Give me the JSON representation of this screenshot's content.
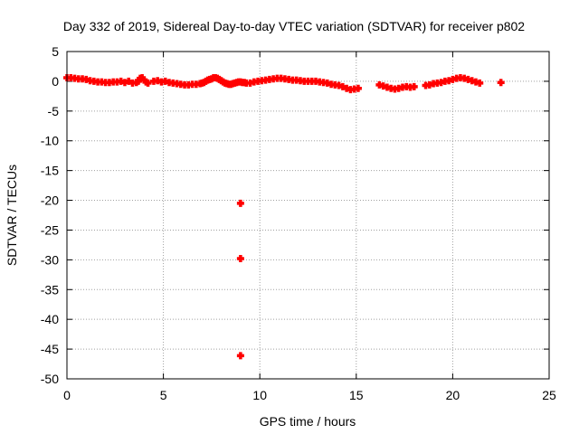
{
  "chart_data": {
    "type": "scatter",
    "title": "Day 332 of 2019, Sidereal Day-to-day VTEC variation (SDTVAR) for receiver p802",
    "xlabel": "GPS time / hours",
    "ylabel": "SDTVAR / TECUs",
    "xlim": [
      0,
      25
    ],
    "ylim": [
      -50,
      5
    ],
    "xticks": [
      0,
      5,
      10,
      15,
      20,
      25
    ],
    "yticks": [
      5,
      0,
      -5,
      -10,
      -15,
      -20,
      -25,
      -30,
      -35,
      -40,
      -45,
      -50
    ],
    "grid": true,
    "legend": "none",
    "marker_color": "#ff0000",
    "series": [
      {
        "marker": "plus",
        "x": [
          0.0,
          0.2,
          0.4,
          0.6,
          0.8,
          1.0,
          1.2,
          1.4,
          1.6,
          1.8,
          2.0,
          2.2,
          2.4,
          2.6,
          2.8,
          3.0,
          3.2,
          3.4,
          3.6,
          3.7,
          3.8,
          3.9,
          4.0,
          4.1,
          4.2,
          4.5,
          4.7,
          4.9,
          5.1,
          5.3,
          5.5,
          5.7,
          5.9,
          6.1,
          6.3,
          6.5,
          6.7,
          6.9,
          7.0,
          7.1,
          7.2,
          7.3,
          7.4,
          7.5,
          7.6,
          7.7,
          7.8,
          7.9,
          8.0,
          8.1,
          8.2,
          8.3,
          8.4,
          8.5,
          8.6,
          8.7,
          8.8,
          8.9,
          9.0,
          9.1,
          9.2,
          9.3,
          9.5,
          9.7,
          9.9,
          10.1,
          10.3,
          10.5,
          10.7,
          10.9,
          11.1,
          11.3,
          11.5,
          11.7,
          11.9,
          12.1,
          12.3,
          12.5,
          12.7,
          12.9,
          13.1,
          13.3,
          13.5,
          13.7,
          13.9,
          14.1,
          14.3,
          14.5,
          14.7,
          14.9,
          15.1,
          16.2,
          16.4,
          16.6,
          16.8,
          17.0,
          17.2,
          17.4,
          17.6,
          17.8,
          18.0,
          18.6,
          18.8,
          19.0,
          19.2,
          19.4,
          19.6,
          19.8,
          20.0,
          20.2,
          20.4,
          20.6,
          20.8,
          21.0,
          21.2,
          21.4,
          22.5,
          9.0,
          9.0,
          9.0
        ],
        "y": [
          0.6,
          0.6,
          0.5,
          0.4,
          0.4,
          0.3,
          0.1,
          0.0,
          -0.1,
          -0.1,
          -0.2,
          -0.2,
          -0.1,
          -0.1,
          0.0,
          -0.2,
          0.0,
          -0.3,
          -0.2,
          0.0,
          0.5,
          0.6,
          0.2,
          -0.1,
          -0.3,
          0.0,
          0.1,
          -0.1,
          0.0,
          -0.2,
          -0.3,
          -0.4,
          -0.5,
          -0.6,
          -0.6,
          -0.5,
          -0.5,
          -0.4,
          -0.3,
          -0.2,
          0.0,
          0.2,
          0.3,
          0.4,
          0.6,
          0.6,
          0.5,
          0.3,
          0.1,
          -0.1,
          -0.3,
          -0.4,
          -0.5,
          -0.5,
          -0.4,
          -0.3,
          -0.2,
          -0.1,
          -0.1,
          -0.2,
          -0.2,
          -0.3,
          -0.3,
          -0.1,
          0.0,
          0.1,
          0.2,
          0.3,
          0.4,
          0.5,
          0.5,
          0.4,
          0.3,
          0.2,
          0.2,
          0.1,
          0.0,
          0.0,
          0.0,
          0.0,
          -0.1,
          -0.2,
          -0.3,
          -0.5,
          -0.6,
          -0.7,
          -0.9,
          -1.2,
          -1.4,
          -1.3,
          -1.2,
          -0.6,
          -0.8,
          -1.0,
          -1.2,
          -1.3,
          -1.2,
          -1.0,
          -0.9,
          -1.0,
          -0.9,
          -0.7,
          -0.6,
          -0.4,
          -0.3,
          -0.2,
          0.0,
          0.1,
          0.3,
          0.5,
          0.6,
          0.5,
          0.3,
          0.1,
          -0.1,
          -0.3,
          -0.2,
          -20.5,
          -29.8,
          -46.1
        ]
      }
    ]
  }
}
